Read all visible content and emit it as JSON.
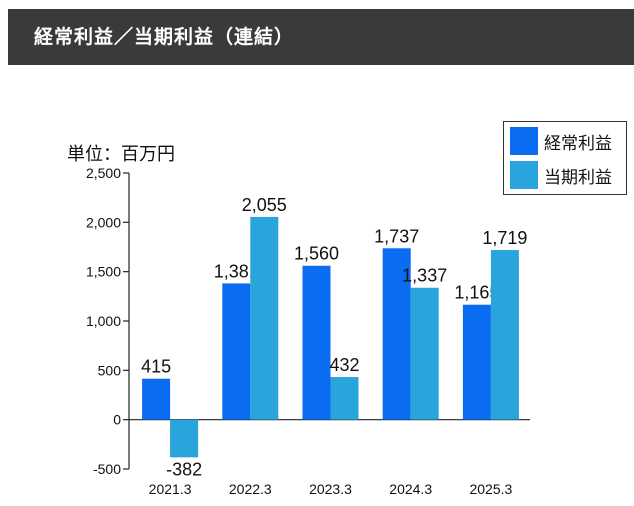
{
  "header": {
    "title": "経常利益／当期利益（連結）"
  },
  "chart_data": {
    "type": "bar",
    "unit_label": "単位：百万円",
    "categories": [
      "2021.3",
      "2022.3",
      "2023.3",
      "2024.3",
      "2025.3"
    ],
    "series": [
      {
        "name": "経常利益",
        "values": [
          415,
          1381,
          1560,
          1737,
          1165
        ],
        "color": "#0a6cf0"
      },
      {
        "name": "当期利益",
        "values": [
          -382,
          2055,
          432,
          1337,
          1719
        ],
        "color": "#2aa4dd"
      }
    ],
    "value_labels": [
      [
        "415",
        "1,381",
        "1,560",
        "1,737",
        "1,165"
      ],
      [
        "-382",
        "2,055",
        "432",
        "1,337",
        "1,719"
      ]
    ],
    "yticks": [
      -500,
      0,
      500,
      1000,
      1500,
      2000,
      2500
    ],
    "ytick_labels": [
      "-500",
      "0",
      "500",
      "1,000",
      "1,500",
      "2,000",
      "2,500"
    ],
    "ylim": [
      -500,
      2500
    ],
    "grid": false,
    "legend": "top-right"
  }
}
